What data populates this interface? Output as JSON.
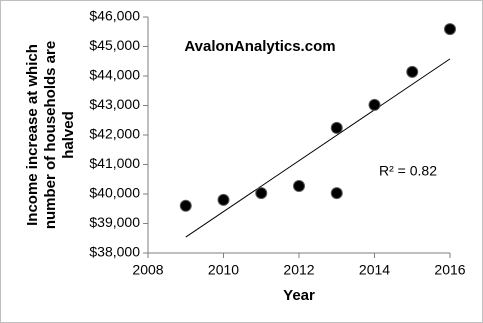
{
  "chart_data": {
    "type": "scatter",
    "ylabel": [
      "Income increase at which",
      "number of households are",
      "halved"
    ],
    "xlabel": "Year",
    "annotations": [
      "AvalonAnalytics.com",
      "R² = 0.82"
    ],
    "series": [
      {
        "color": "#000000",
        "x": [
          2009,
          2010,
          2011,
          2012,
          2013,
          2013,
          2014,
          2015,
          2016
        ],
        "values": [
          39600,
          39800,
          40030,
          40270,
          40030,
          42240,
          43020,
          44140,
          45590
        ]
      }
    ],
    "trendline": {
      "x": [
        2009,
        2016
      ],
      "values": [
        38540,
        44580
      ],
      "color": "#000000"
    },
    "xlim": [
      2008,
      2016
    ],
    "xticks": [
      2008,
      2010,
      2012,
      2014,
      2016
    ],
    "ylim": [
      38000,
      46000
    ],
    "yticks": [
      {
        "value": 38000,
        "label": "$38,000"
      },
      {
        "value": 39000,
        "label": "$39,000"
      },
      {
        "value": 40000,
        "label": "$40,000"
      },
      {
        "value": 41000,
        "label": "$41,000"
      },
      {
        "value": 42000,
        "label": "$42,000"
      },
      {
        "value": 43000,
        "label": "$43,000"
      },
      {
        "value": 44000,
        "label": "$44,000"
      },
      {
        "value": 45000,
        "label": "$45,000"
      },
      {
        "value": 46000,
        "label": "$46,000"
      }
    ]
  }
}
